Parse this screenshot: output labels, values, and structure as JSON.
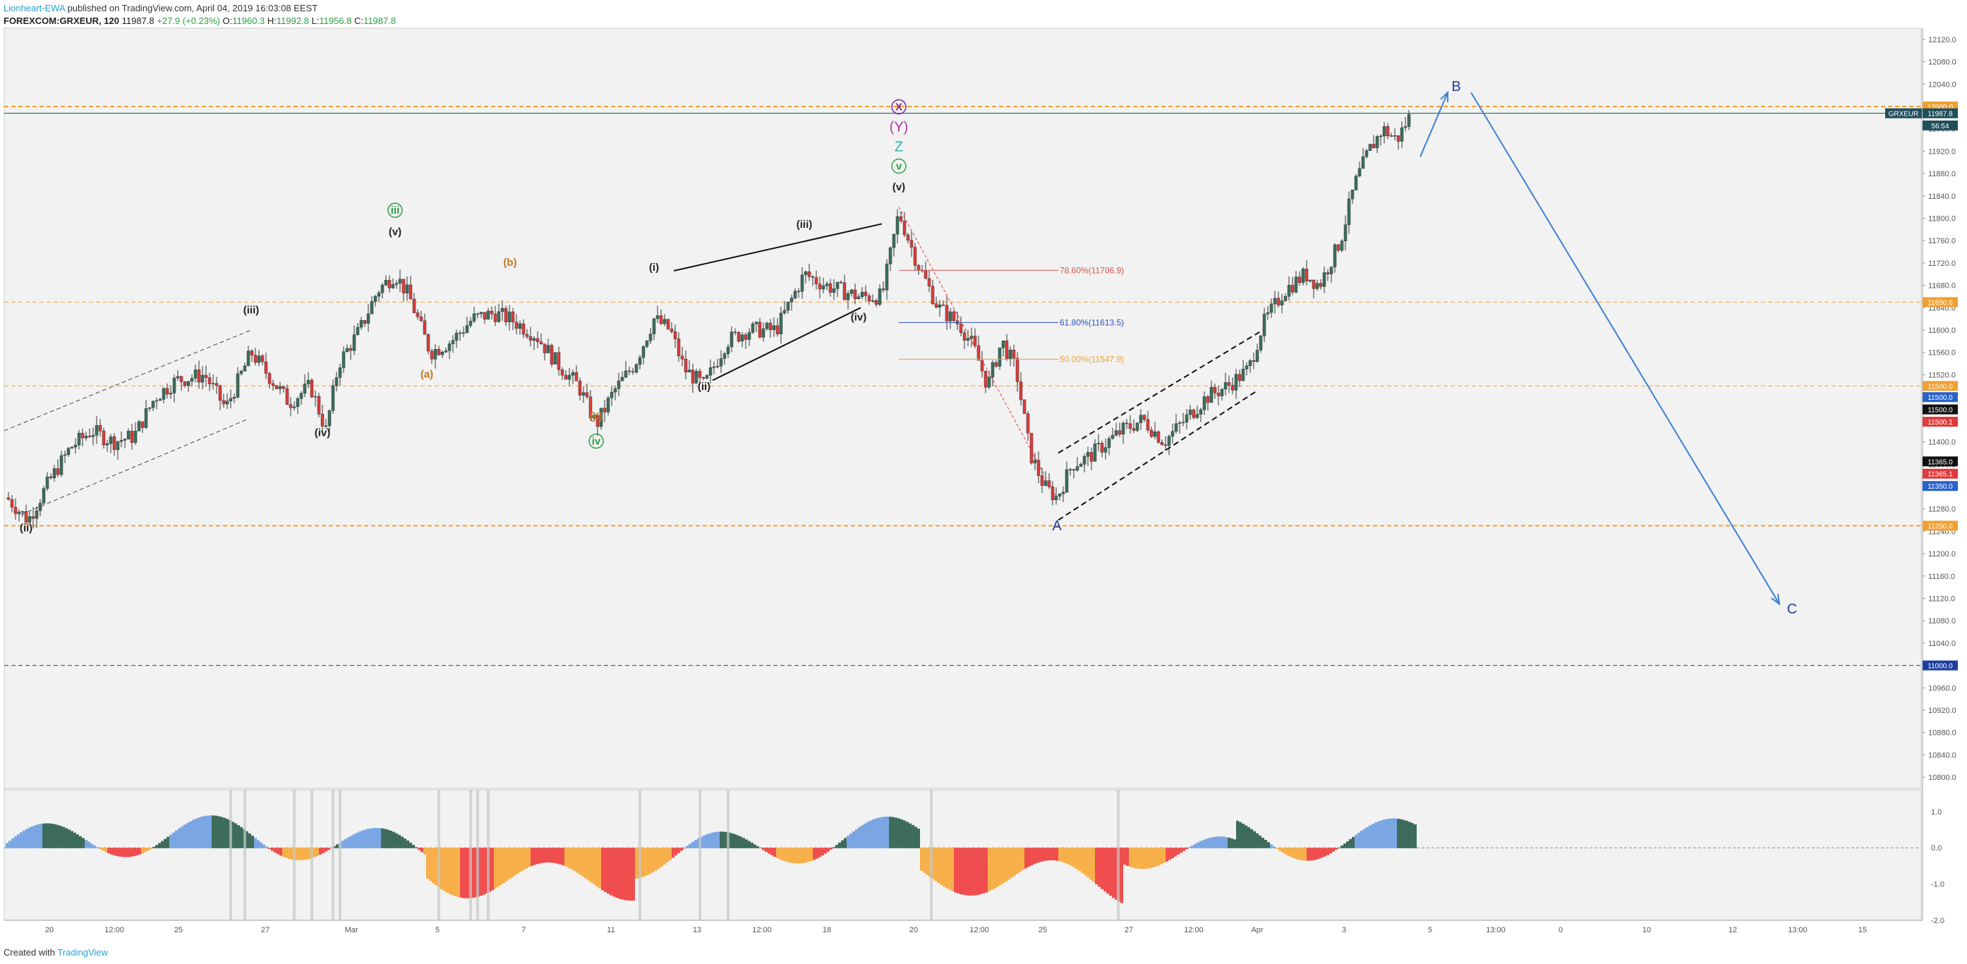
{
  "header": {
    "author": "Lionheart-EWA",
    "published": "published on TradingView.com, April 04, 2019 16:03:08 EEST",
    "symbol": "FOREXCOM:GRXEUR, 120",
    "last": "11987.8",
    "change": "+27.9 (+0.23%)",
    "o_label": "O:",
    "o_value": "11960.3",
    "h_label": "H:",
    "h_value": "11992.8",
    "l_label": "L:",
    "l_value": "11956.8",
    "c_label": "C:",
    "c_value": "11987.8"
  },
  "footer": {
    "created": "Created with",
    "brand": "TradingView"
  },
  "colors": {
    "bg": "#f2f2f2",
    "up": "#3b6f5e",
    "down": "#e03a3a",
    "orange": "#f0a030",
    "blue": "#3d7fd6",
    "navy": "#1f3f9f",
    "osc_green": "#3e6c5c",
    "osc_blue": "#7aa7e3",
    "osc_red": "#f04e4e",
    "osc_orange": "#f7b04a"
  },
  "chart_data": {
    "type": "candlestick",
    "y_range": [
      10780,
      12140
    ],
    "y_ticks": [
      "12120.0",
      "12080.0",
      "12040.0",
      "12000.0",
      "11960.0",
      "11920.0",
      "11880.0",
      "11840.0",
      "11800.0",
      "11760.0",
      "11720.0",
      "11680.0",
      "11640.0",
      "11600.0",
      "11560.0",
      "11520.0",
      "11480.0",
      "11440.0",
      "11400.0",
      "11360.0",
      "11320.0",
      "11280.0",
      "11240.0",
      "11200.0",
      "11160.0",
      "11120.0",
      "11080.0",
      "11040.0",
      "11000.0",
      "10960.0",
      "10920.0",
      "10880.0",
      "10840.0",
      "10800.0"
    ],
    "x_ticks": [
      "20",
      "12:00",
      "25",
      "27",
      "Mar",
      "5",
      "7",
      "11",
      "13",
      "12:00",
      "18",
      "20",
      "12:00",
      "25",
      "27",
      "12:00",
      "Apr",
      "3",
      "5",
      "13:00",
      "0",
      "10",
      "12",
      "13:00",
      "15"
    ],
    "price_levels": [
      {
        "label": "12000.0",
        "value": 12000,
        "color": "#f0a030",
        "style": "dashed"
      },
      {
        "label": "11650.0",
        "value": 11650,
        "color": "#f0a030",
        "style": "dashed"
      },
      {
        "label": "11500.0",
        "value": 11500,
        "color": "#f0a030",
        "style": "dashed"
      },
      {
        "label": "11250.0",
        "value": 11250,
        "color": "#f0a030",
        "style": "dashed"
      },
      {
        "label": "11000.0",
        "value": 11000,
        "color": "#1f3f9f",
        "style": "dashed"
      }
    ],
    "axis_badges": [
      {
        "label": "11987.8",
        "value": 11987.8,
        "bg": "#1e4e5a"
      },
      {
        "label": "56:54",
        "value": 11966,
        "bg": "#1e4e5a"
      },
      {
        "label": "11500.0",
        "value": 11480,
        "bg": "#2962c9"
      },
      {
        "label": "11500.0",
        "value": 11458,
        "bg": "#111111"
      },
      {
        "label": "11500.1",
        "value": 11436,
        "bg": "#e03a3a"
      },
      {
        "label": "11365.0",
        "value": 11365,
        "bg": "#111111"
      },
      {
        "label": "11365.1",
        "value": 11343,
        "bg": "#e03a3a"
      },
      {
        "label": "11350.0",
        "value": 11321,
        "bg": "#2962c9"
      }
    ],
    "symbol_tag": "GRXEUR",
    "fib_levels": [
      {
        "label": "78.60%(11706.9)",
        "value": 11706.9,
        "color": "#e05050"
      },
      {
        "label": "61.80%(11613.5)",
        "value": 11613.5,
        "color": "#3050c0"
      },
      {
        "label": "50.00%(11547.9)",
        "value": 11547.9,
        "color": "#f0a030"
      }
    ],
    "wave_labels": [
      {
        "text": "(ii)",
        "x": 37,
        "y": 11240,
        "color": "#222"
      },
      {
        "text": "(iii)",
        "x": 356,
        "y": 11630,
        "color": "#222"
      },
      {
        "text": "(iv)",
        "x": 457,
        "y": 11410,
        "color": "#222"
      },
      {
        "text": "(v)",
        "x": 560,
        "y": 11770,
        "color": "#222"
      },
      {
        "text": "iii",
        "x": 560,
        "y": 11808,
        "color": "#2e9e46",
        "circle": true
      },
      {
        "text": "(a)",
        "x": 605,
        "y": 11515,
        "color": "#c07a20"
      },
      {
        "text": "(b)",
        "x": 723,
        "y": 11715,
        "color": "#c07a20"
      },
      {
        "text": "(c)",
        "x": 845,
        "y": 11440,
        "color": "#c07a20"
      },
      {
        "text": "iv",
        "x": 845,
        "y": 11395,
        "color": "#2e9e46",
        "circle": true
      },
      {
        "text": "(i)",
        "x": 927,
        "y": 11706,
        "color": "#222"
      },
      {
        "text": "(ii)",
        "x": 998,
        "y": 11493,
        "color": "#222"
      },
      {
        "text": "(iii)",
        "x": 1140,
        "y": 11783,
        "color": "#222"
      },
      {
        "text": "(iv)",
        "x": 1217,
        "y": 11617,
        "color": "#222"
      },
      {
        "text": "(v)",
        "x": 1274,
        "y": 11850,
        "color": "#222"
      },
      {
        "text": "v",
        "x": 1274,
        "y": 11887,
        "color": "#2e9e46",
        "circle": true
      },
      {
        "text": "Z",
        "x": 1274,
        "y": 11920,
        "color": "#2ab0b0"
      },
      {
        "text": "(Y)",
        "x": 1274,
        "y": 11955,
        "color": "#b030b0"
      },
      {
        "text": "X",
        "x": 1274,
        "y": 11993,
        "color": "#7a2a9a",
        "circle": true
      },
      {
        "text": "A",
        "x": 1498,
        "y": 11242,
        "color": "#1f3f9f"
      },
      {
        "text": "B",
        "x": 2064,
        "y": 12028,
        "color": "#1f3f9f"
      },
      {
        "text": "C",
        "x": 2540,
        "y": 11093,
        "color": "#1f3f9f"
      }
    ],
    "oscillator": {
      "ticks": [
        "1.0",
        "0.0",
        "-1.0",
        "-2.0"
      ],
      "range": [
        -2.0,
        1.6
      ]
    }
  }
}
